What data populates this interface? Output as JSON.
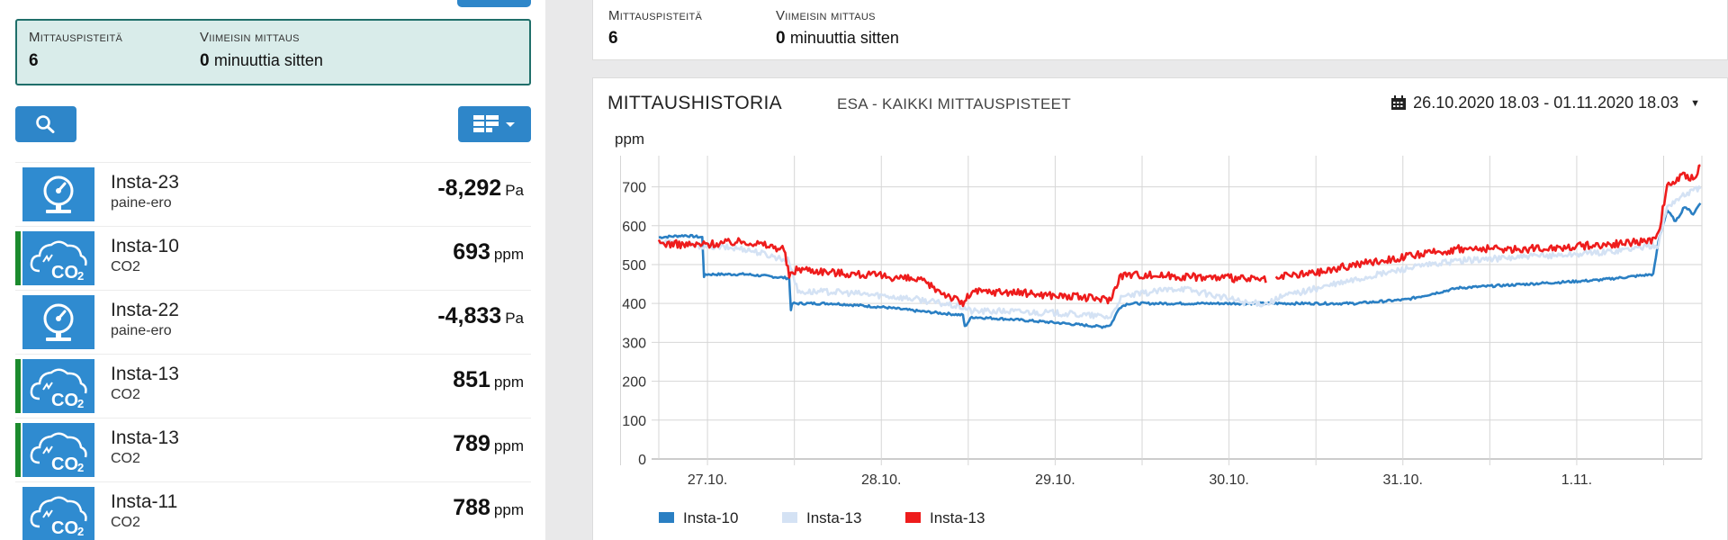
{
  "summary": {
    "points_label": "Mittauspisteitä",
    "points_value": "6",
    "latest_label": "Viimeisin mittaus",
    "latest_value": "0",
    "latest_unit": "minuuttia sitten"
  },
  "toolbar": {
    "search_icon": "search-icon",
    "view_icon": "grid-view-icon"
  },
  "devices": [
    {
      "name": "Insta-23",
      "type": "paine-ero",
      "value": "-8,292",
      "unit": "Pa",
      "icon": "pressure-gauge-icon",
      "marker": false
    },
    {
      "name": "Insta-10",
      "type": "CO2",
      "value": "693",
      "unit": "ppm",
      "icon": "co2-cloud-icon",
      "marker": true
    },
    {
      "name": "Insta-22",
      "type": "paine-ero",
      "value": "-4,833",
      "unit": "Pa",
      "icon": "pressure-gauge-icon",
      "marker": false
    },
    {
      "name": "Insta-13",
      "type": "CO2",
      "value": "851",
      "unit": "ppm",
      "icon": "co2-cloud-icon",
      "marker": true
    },
    {
      "name": "Insta-13",
      "type": "CO2",
      "value": "789",
      "unit": "ppm",
      "icon": "co2-cloud-icon",
      "marker": true
    },
    {
      "name": "Insta-11",
      "type": "CO2",
      "value": "788",
      "unit": "ppm",
      "icon": "co2-cloud-icon",
      "marker": false
    }
  ],
  "chart": {
    "title": "MITTAUSHISTORIA",
    "subtitle": "ESA - KAIKKI MITTAUSPISTEET",
    "date_range": "26.10.2020 18.03 - 01.11.2020 18.03",
    "date_icon": "calendar-icon"
  },
  "chart_data": {
    "type": "line",
    "ylabel": "ppm",
    "ylim": [
      0,
      780
    ],
    "yticks": [
      0,
      100,
      200,
      300,
      400,
      500,
      600,
      700
    ],
    "xlim": [
      0,
      6
    ],
    "xticks": [
      {
        "label": "27.10.",
        "x": 0.28
      },
      {
        "label": "28.10.",
        "x": 1.28
      },
      {
        "label": "29.10.",
        "x": 2.28
      },
      {
        "label": "30.10.",
        "x": 3.28
      },
      {
        "label": "31.10.",
        "x": 4.28
      },
      {
        "label": "1.11.",
        "x": 5.28
      }
    ],
    "grid": true,
    "legend": "bottom-left",
    "series": [
      {
        "name": "Insta-10",
        "color": "#2a7fc3",
        "x": [
          0,
          0.15,
          0.25,
          0.26,
          0.27,
          0.5,
          0.75,
          0.76,
          0.77,
          1.0,
          1.3,
          1.5,
          1.75,
          1.76,
          1.8,
          2.0,
          2.3,
          2.55,
          2.6,
          2.65,
          2.7,
          3.0,
          3.35,
          3.75,
          4.0,
          4.3,
          4.6,
          5.0,
          5.4,
          5.72,
          5.75,
          5.8,
          5.85,
          5.9,
          5.95,
          6.0
        ],
        "values": [
          570,
          575,
          570,
          470,
          475,
          475,
          465,
          385,
          400,
          400,
          390,
          380,
          370,
          340,
          365,
          360,
          350,
          340,
          345,
          390,
          400,
          400,
          400,
          400,
          400,
          410,
          440,
          450,
          460,
          475,
          560,
          640,
          610,
          650,
          630,
          665
        ]
      },
      {
        "name": "Insta-13",
        "color": "#d4e2f4",
        "x": [
          0,
          0.2,
          0.5,
          0.75,
          0.8,
          1.0,
          1.3,
          1.5,
          1.75,
          1.8,
          2.0,
          2.3,
          2.6,
          2.65,
          2.7,
          3.0,
          3.4,
          3.5,
          3.6,
          3.8,
          4.0,
          4.3,
          4.6,
          5.0,
          5.4,
          5.75,
          5.8,
          5.9,
          6.0
        ],
        "values": [
          560,
          550,
          540,
          510,
          430,
          430,
          420,
          410,
          390,
          380,
          380,
          375,
          365,
          410,
          420,
          440,
          400,
          400,
          420,
          440,
          460,
          490,
          510,
          520,
          530,
          550,
          650,
          680,
          700
        ]
      },
      {
        "name": "Insta-13",
        "color": "#ee1c1c",
        "x": [
          0,
          0.2,
          0.5,
          0.72,
          0.75,
          0.8,
          1.0,
          1.3,
          1.5,
          1.75,
          1.8,
          2.0,
          2.3,
          2.6,
          2.65,
          2.7,
          3.0,
          3.3,
          3.5,
          3.52,
          3.55,
          3.6,
          3.8,
          4.0,
          4.3,
          4.6,
          5.0,
          5.4,
          5.7,
          5.75,
          5.8,
          5.9,
          5.95,
          6.0
        ],
        "values": [
          555,
          550,
          560,
          540,
          470,
          490,
          480,
          470,
          460,
          400,
          430,
          430,
          420,
          410,
          470,
          475,
          470,
          465,
          460,
          null,
          460,
          470,
          480,
          500,
          520,
          540,
          540,
          550,
          560,
          580,
          700,
          730,
          720,
          760
        ]
      }
    ]
  }
}
